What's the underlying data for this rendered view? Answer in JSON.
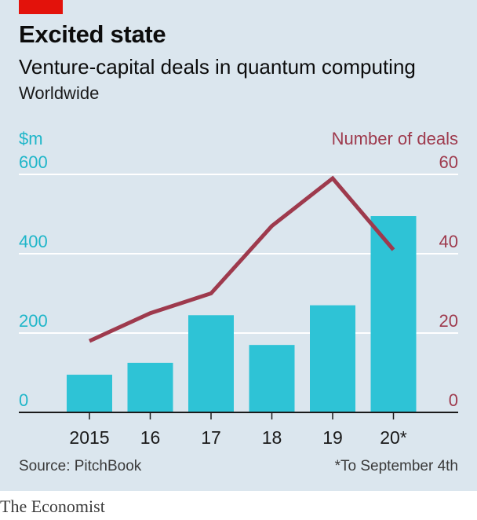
{
  "header": {
    "title": "Excited state",
    "subtitle": "Venture-capital deals in quantum computing",
    "region": "Worldwide"
  },
  "axes": {
    "left_unit": "$m",
    "right_unit": "Number of deals"
  },
  "footer": {
    "source": "Source: PitchBook",
    "footnote": "*To September 4th",
    "brand": "The Economist"
  },
  "colors": {
    "bars": "#2ec3d6",
    "line": "#9e3a4d",
    "left_axis": "#1fb6c9",
    "right_axis": "#9e3a4d",
    "grid": "#ffffff",
    "baseline": "#1a1a1a",
    "accent": "#e3120b"
  },
  "chart_data": {
    "type": "bar",
    "categories": [
      "2015",
      "16",
      "17",
      "18",
      "19",
      "20*"
    ],
    "series": [
      {
        "values": [
          95,
          125,
          245,
          170,
          270,
          495
        ],
        "axis": "left"
      },
      {
        "values": [
          18,
          25,
          30,
          47,
          59,
          41
        ],
        "axis": "right",
        "type": "line"
      }
    ],
    "y_left": {
      "ylim": [
        0,
        600
      ],
      "ticks": [
        "0",
        "200",
        "400",
        "600"
      ]
    },
    "y_right": {
      "ylim": [
        0,
        60
      ],
      "ticks": [
        "0",
        "20",
        "40",
        "60"
      ]
    },
    "grid": true
  }
}
